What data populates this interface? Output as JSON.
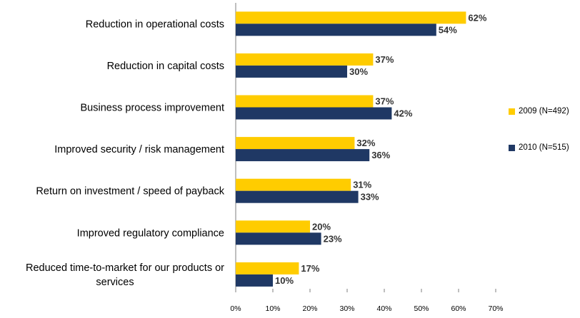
{
  "chart_data": {
    "type": "bar",
    "orientation": "horizontal",
    "categories": [
      "Reduction in operational costs",
      "Reduction in capital costs",
      "Business process improvement",
      "Improved security / risk management",
      "Return on investment / speed of payback",
      "Improved regulatory compliance",
      "Reduced time-to-market for our products or services"
    ],
    "category_lines": [
      [
        "Reduction in operational costs"
      ],
      [
        "Reduction in capital costs"
      ],
      [
        "Business process improvement"
      ],
      [
        "Improved security / risk management"
      ],
      [
        "Return on investment / speed of payback"
      ],
      [
        "Improved regulatory compliance"
      ],
      [
        "Reduced time-to-market for our products or",
        "services"
      ]
    ],
    "series": [
      {
        "name": "2009 (N=492)",
        "color": "#FFCC00",
        "values": [
          62,
          37,
          37,
          32,
          31,
          20,
          17
        ]
      },
      {
        "name": "2010 (N=515)",
        "color": "#1F3864",
        "values": [
          54,
          30,
          42,
          36,
          33,
          23,
          10
        ]
      }
    ],
    "value_suffix": "%",
    "xlim": [
      0,
      70
    ],
    "xticks": [
      0,
      10,
      20,
      30,
      40,
      50,
      60,
      70
    ],
    "xtick_labels": [
      "0%",
      "10%",
      "20%",
      "30%",
      "40%",
      "50%",
      "60%",
      "70%"
    ],
    "grid": false,
    "legend_position": "right",
    "title": "",
    "xlabel": "",
    "ylabel": ""
  }
}
